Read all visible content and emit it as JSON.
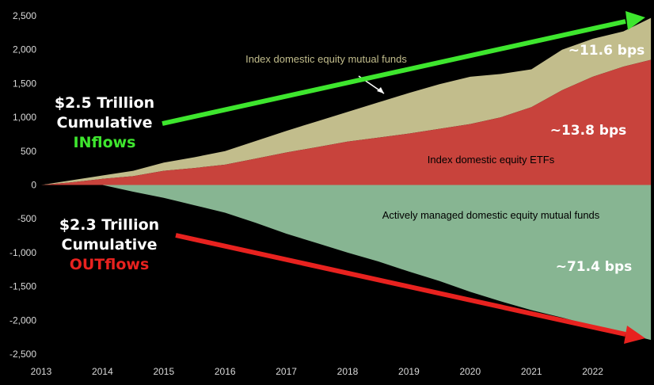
{
  "chart_data": {
    "type": "area",
    "title": "",
    "xlabel": "",
    "ylabel": "",
    "ylim": [
      -2500,
      2500
    ],
    "xlim": [
      2013,
      2023
    ],
    "yticks": [
      2500,
      2000,
      1500,
      1000,
      500,
      0,
      -500,
      -1000,
      -1500,
      -2000,
      -2500
    ],
    "ytick_labels": [
      "2,500",
      "2,000",
      "1,500",
      "1,000",
      "500",
      "0",
      "-500",
      "-1,000",
      "-1,500",
      "-2,000",
      "-2,500"
    ],
    "xticks": [
      "2013",
      "2014",
      "2015",
      "2016",
      "2017",
      "2018",
      "2019",
      "2020",
      "2021",
      "2022"
    ],
    "x": [
      2013,
      2013.5,
      2014,
      2014.5,
      2015,
      2015.5,
      2016,
      2016.5,
      2017,
      2017.5,
      2018,
      2018.5,
      2019,
      2019.5,
      2020,
      2020.5,
      2021,
      2021.5,
      2022,
      2022.5,
      2022.95
    ],
    "series": [
      {
        "name": "Index domestic equity ETFs",
        "color": "#c8433c",
        "values": [
          0,
          40,
          90,
          130,
          210,
          250,
          300,
          390,
          480,
          560,
          640,
          700,
          760,
          830,
          900,
          1000,
          1150,
          1400,
          1600,
          1750,
          1850
        ]
      },
      {
        "name": "Index domestic equity mutual funds",
        "color": "#c2bd8c",
        "stacked_on": "Index domestic equity ETFs",
        "values": [
          0,
          30,
          50,
          80,
          120,
          160,
          200,
          260,
          320,
          380,
          440,
          520,
          600,
          660,
          700,
          640,
          560,
          600,
          560,
          520,
          620
        ]
      },
      {
        "name": "Actively managed domestic equity mutual funds",
        "color": "#87b592",
        "values": [
          0,
          0,
          0,
          -100,
          -190,
          -300,
          -410,
          -560,
          -720,
          -860,
          -1000,
          -1130,
          -1280,
          -1420,
          -1580,
          -1720,
          -1850,
          -1960,
          -2080,
          -2190,
          -2290
        ]
      }
    ],
    "annotations": {
      "inflows_line1": "$2.5 Trillion",
      "inflows_line2": "Cumulative",
      "inflows_line3": "INflows",
      "outflows_line1": "$2.3 Trillion",
      "outflows_line2": "Cumulative",
      "outflows_line3": "OUTflows",
      "bps_mutual_index": "~11.6 bps",
      "bps_etf": "~13.8 bps",
      "bps_active": "~71.4 bps"
    },
    "colors": {
      "background": "#000000",
      "inflow_arrow": "#3ee62e",
      "outflow_arrow": "#e8221f",
      "inflow_word": "#3ee62e",
      "outflow_word": "#e8221f"
    },
    "grid": false,
    "legend": "none (inline area labels)"
  }
}
